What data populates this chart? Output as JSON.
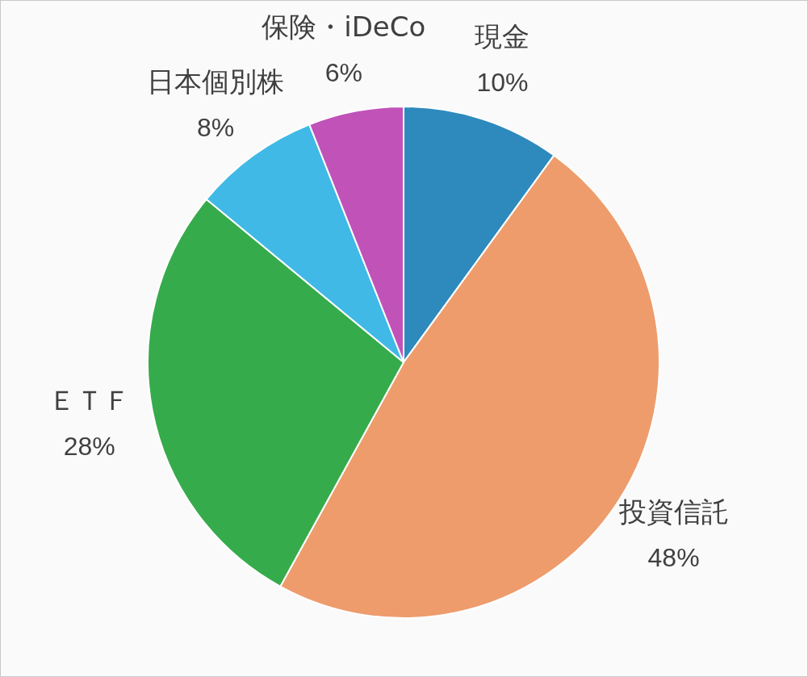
{
  "chart_data": {
    "type": "pie",
    "categories": [
      "現金",
      "投資信託",
      "ＥＴＦ",
      "日本個別株",
      "保険・iDeCo"
    ],
    "values": [
      10,
      48,
      28,
      8,
      6
    ],
    "value_labels": [
      "10%",
      "48%",
      "28%",
      "8%",
      "6%"
    ],
    "colors": [
      "#2e8abd",
      "#ee9c6c",
      "#36ab4b",
      "#40b9e6",
      "#c052b8"
    ],
    "legend": false
  }
}
